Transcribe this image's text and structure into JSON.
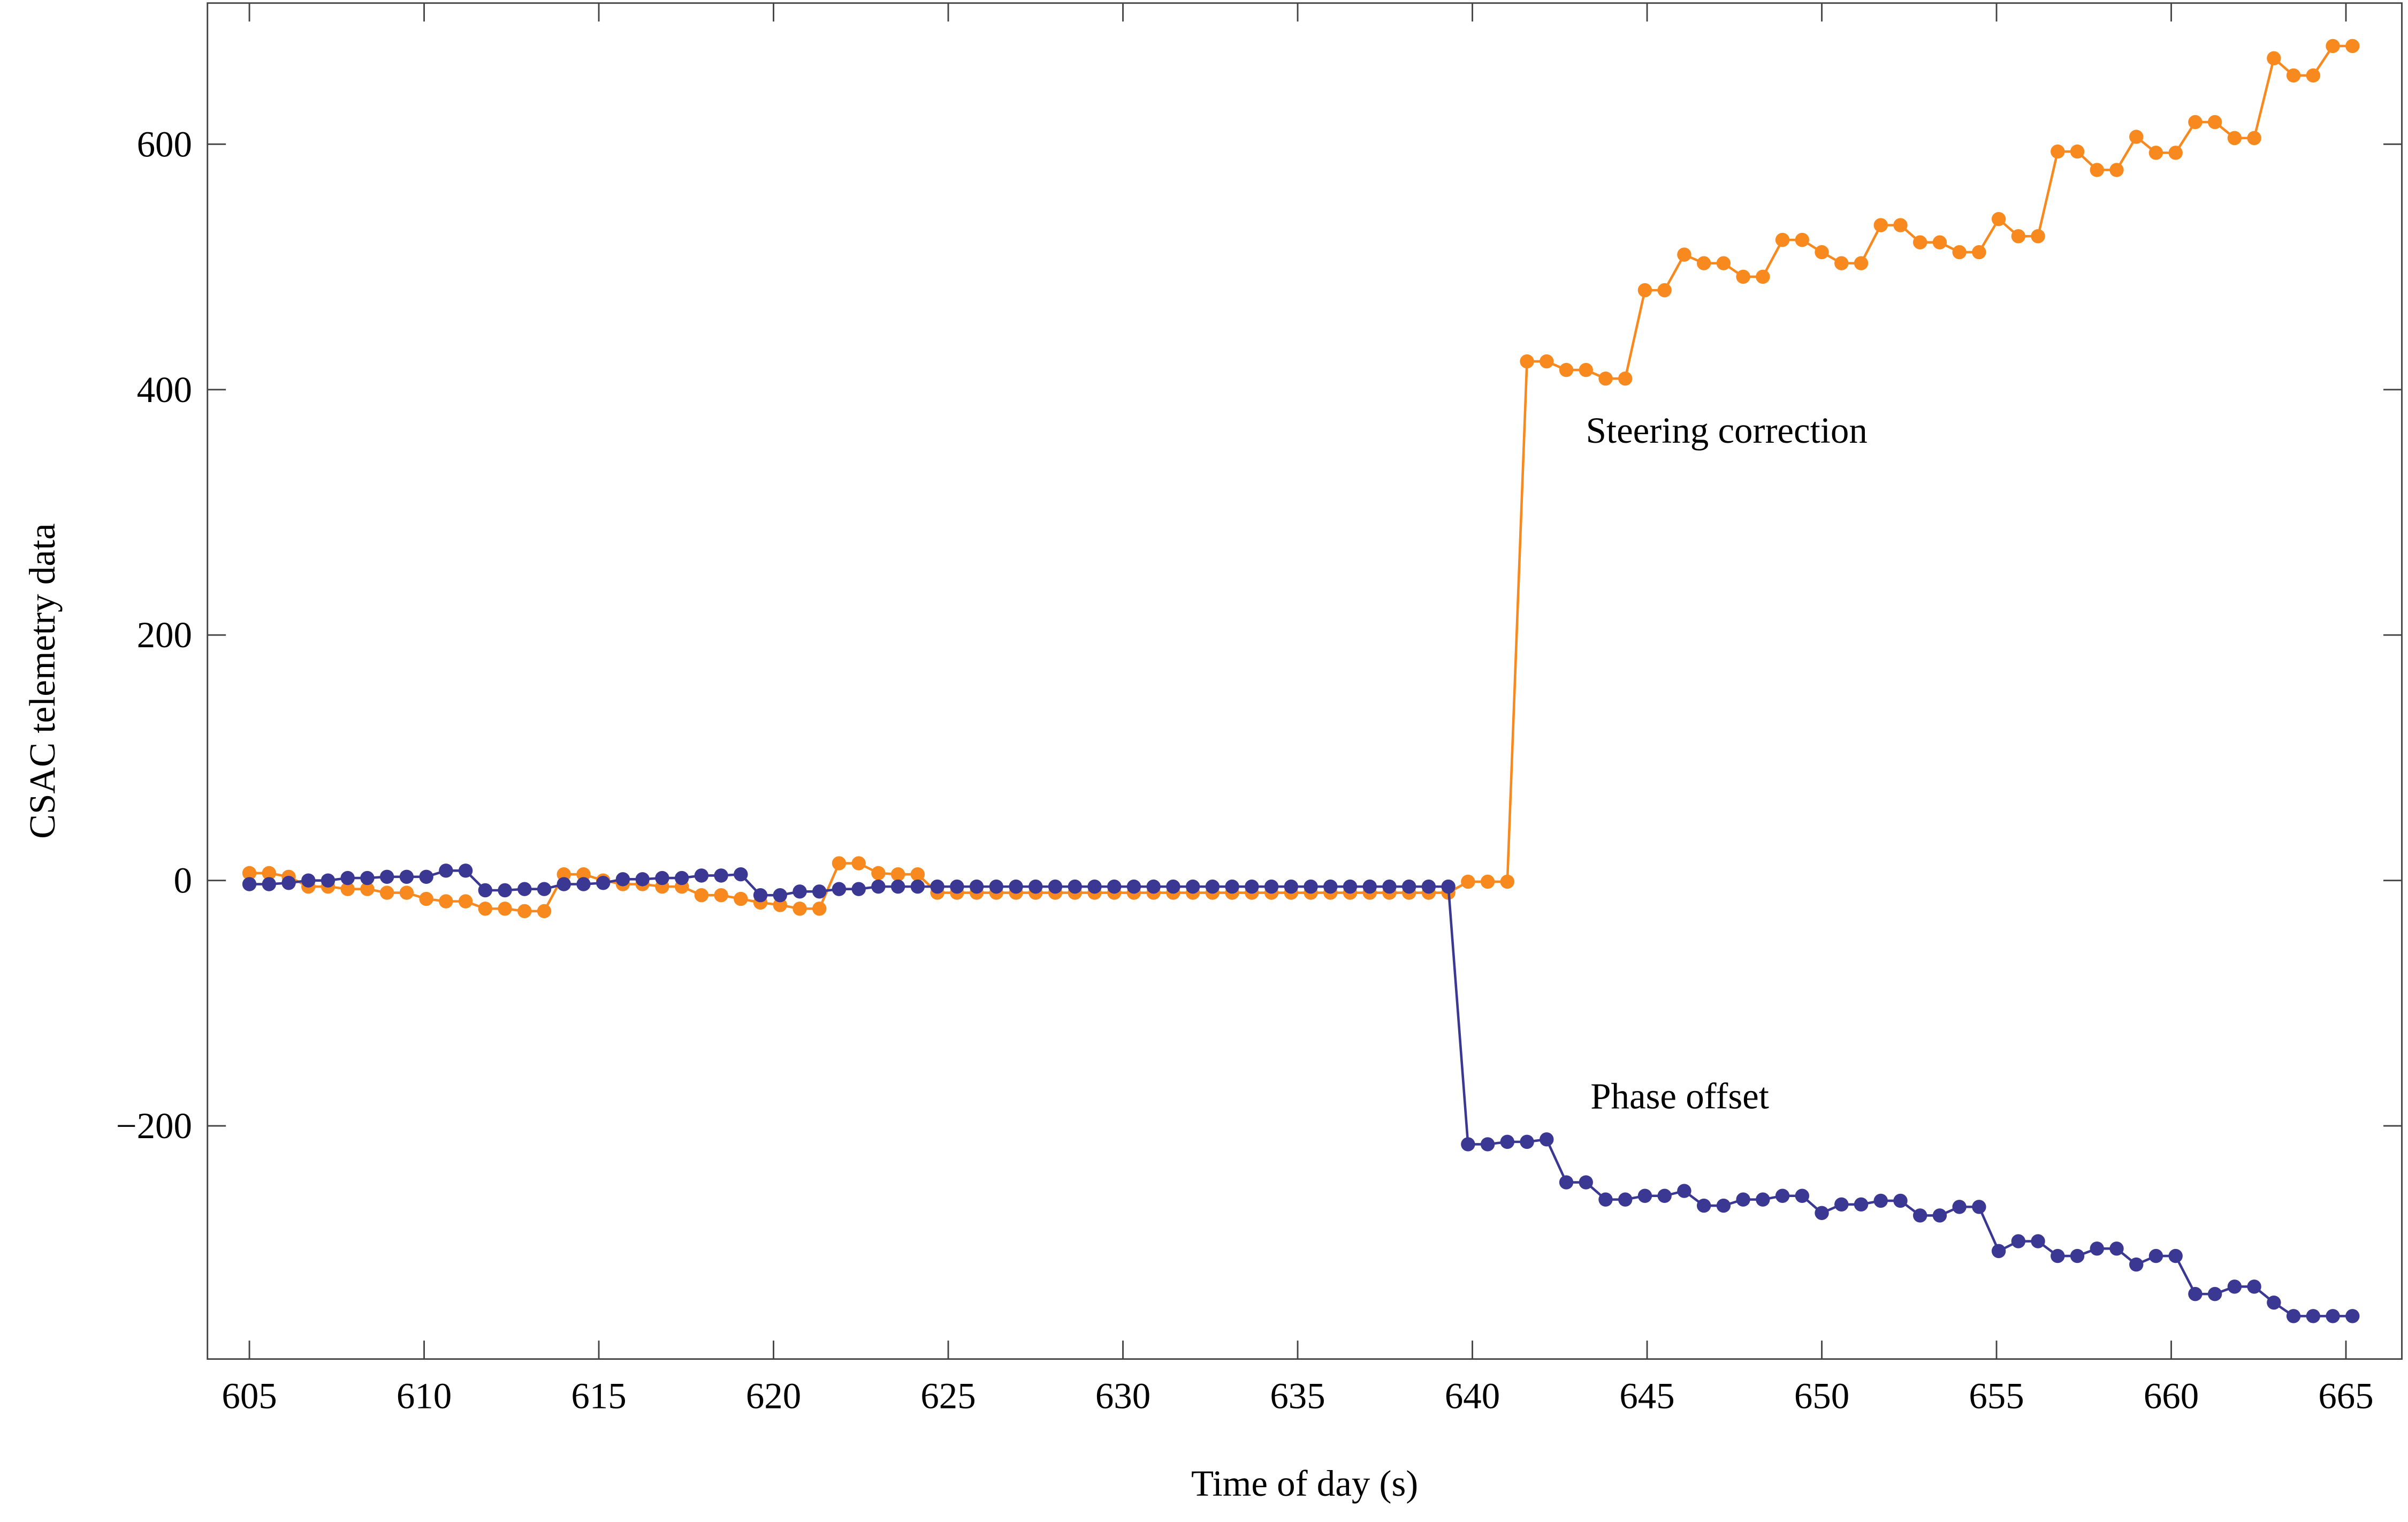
{
  "chart_data": {
    "type": "line",
    "xlabel": "Time of day (s)",
    "ylabel": "CSAC telemetry data",
    "annotations": [
      "Steering correction",
      "Phase offset"
    ],
    "x": [
      605,
      605.5625,
      606.125,
      606.6875,
      607.25,
      607.8125,
      608.375,
      608.9375,
      609.5,
      610.0625,
      610.625,
      611.1875,
      611.75,
      612.3125,
      612.875,
      613.4375,
      614,
      614.5625,
      615.125,
      615.6875,
      616.25,
      616.8125,
      617.375,
      617.9375,
      618.5,
      619.0625,
      619.625,
      620.1875,
      620.75,
      621.3125,
      621.875,
      622.4375,
      623,
      623.5625,
      624.125,
      624.6875,
      625.25,
      625.8125,
      626.375,
      626.9375,
      627.5,
      628.0625,
      628.625,
      629.1875,
      629.75,
      630.3125,
      630.875,
      631.4375,
      632,
      632.5625,
      633.125,
      633.6875,
      634.25,
      634.8125,
      635.375,
      635.9375,
      636.5,
      637.0625,
      637.625,
      638.1875,
      638.75,
      639.3125,
      639.875,
      640.4375,
      641,
      641.5625,
      642.125,
      642.6875,
      643.25,
      643.8125,
      644.375,
      644.9375,
      645.5,
      646.0625,
      646.625,
      647.1875,
      647.75,
      648.3125,
      648.875,
      649.4375,
      650,
      650.5625,
      651.125,
      651.6875,
      652.25,
      652.8125,
      653.375,
      653.9375,
      654.5,
      655.0625,
      655.625,
      656.1875,
      656.75,
      657.3125,
      657.875,
      658.4375,
      659,
      659.5625,
      660.125,
      660.6875,
      661.25,
      661.8125,
      662.375,
      662.9375,
      663.5,
      664.0625,
      664.625,
      665.1875
    ],
    "series": [
      {
        "color": "#f7891f",
        "values": [
          6,
          6,
          3,
          -5,
          -5,
          -7,
          -7,
          -10,
          -10,
          -15,
          -17,
          -17,
          -23,
          -23,
          -25,
          -25,
          5,
          5,
          0,
          -3,
          -3,
          -5,
          -5,
          -12,
          -12,
          -15,
          -18,
          -20,
          -23,
          -23,
          14,
          14,
          6,
          5,
          5,
          -10,
          -10,
          -10,
          -10,
          -10,
          -10,
          -10,
          -10,
          -10,
          -10,
          -10,
          -10,
          -10,
          -10,
          -10,
          -10,
          -10,
          -10,
          -10,
          -10,
          -10,
          -10,
          -10,
          -10,
          -10,
          -10,
          -10,
          -1,
          -1,
          -1,
          423,
          423,
          416,
          416,
          409,
          409,
          481,
          481,
          510,
          503,
          503,
          492,
          492,
          522,
          522,
          512,
          503,
          503,
          534,
          534,
          520,
          520,
          512,
          512,
          539,
          525,
          525,
          594,
          594,
          579,
          579,
          606,
          593,
          593,
          618,
          618,
          605,
          605,
          670,
          656,
          656,
          680,
          680
        ]
      },
      {
        "color": "#3b3894",
        "values": [
          -3,
          -3,
          -2,
          0,
          0,
          2,
          2,
          3,
          3,
          3,
          8,
          8,
          -8,
          -8,
          -7,
          -7,
          -3,
          -3,
          -2,
          1,
          1,
          2,
          2,
          4,
          4,
          5,
          -12,
          -12,
          -9,
          -9,
          -7,
          -7,
          -5,
          -5,
          -5,
          -5,
          -5,
          -5,
          -5,
          -5,
          -5,
          -5,
          -5,
          -5,
          -5,
          -5,
          -5,
          -5,
          -5,
          -5,
          -5,
          -5,
          -5,
          -5,
          -5,
          -5,
          -5,
          -5,
          -5,
          -5,
          -5,
          -5,
          -215,
          -215,
          -213,
          -213,
          -211,
          -246,
          -246,
          -260,
          -260,
          -257,
          -257,
          -253,
          -265,
          -265,
          -260,
          -260,
          -257,
          -257,
          -271,
          -264,
          -264,
          -261,
          -261,
          -273,
          -273,
          -266,
          -266,
          -302,
          -294,
          -294,
          -306,
          -306,
          -300,
          -300,
          -313,
          -306,
          -306,
          -337,
          -337,
          -331,
          -331,
          -344,
          -355,
          -355,
          -355,
          -355
        ]
      }
    ],
    "xlim": [
      603.8,
      666.6
    ],
    "xticks": [
      605,
      610,
      615,
      620,
      625,
      630,
      635,
      640,
      645,
      650,
      655,
      660,
      665
    ],
    "ylim": [
      -390,
      715
    ],
    "yticks": [
      -200,
      0,
      200,
      400,
      600
    ],
    "grid": false
  }
}
